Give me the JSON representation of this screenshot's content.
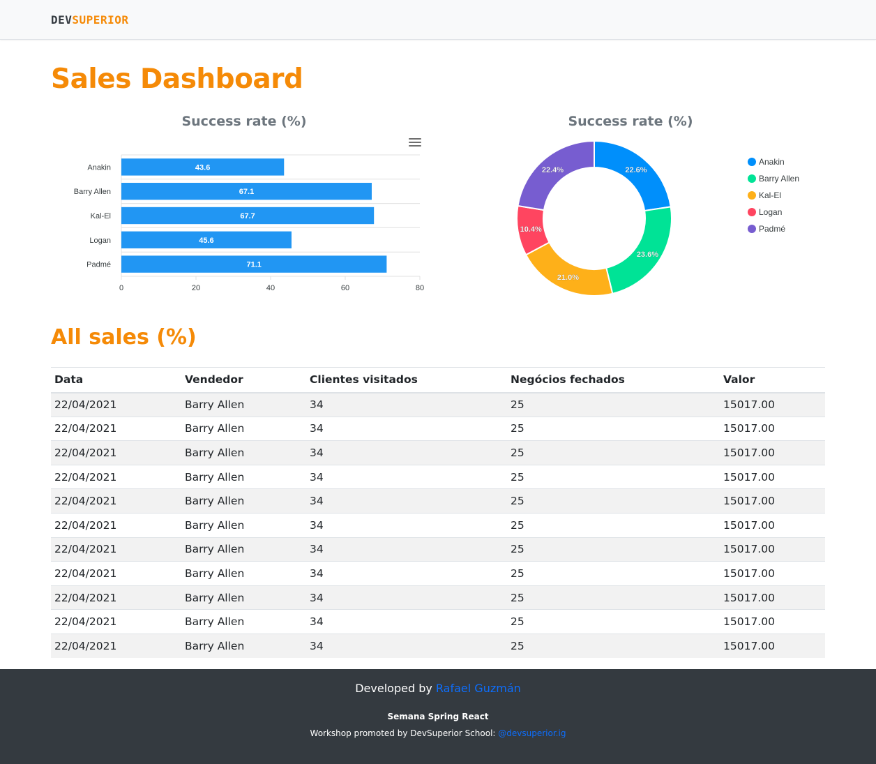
{
  "brand": {
    "part1": "DEV",
    "part2": "SUPERIOR"
  },
  "page": {
    "title": "Sales Dashboard",
    "section_title": "All sales (%)"
  },
  "colors": {
    "brand_orange": "#f58a07",
    "bar_blue": "#2196f3",
    "footer_bg": "#343a40",
    "link_blue": "#0d6efd"
  },
  "charts": {
    "bar_title": "Success rate (%)",
    "donut_title": "Success rate (%)",
    "menu_icon": "hamburger-menu-icon"
  },
  "chart_data": [
    {
      "type": "bar",
      "orientation": "horizontal",
      "title": "Success rate (%)",
      "categories": [
        "Anakin",
        "Barry Allen",
        "Kal-El",
        "Logan",
        "Padmé"
      ],
      "values": [
        43.6,
        67.1,
        67.7,
        45.6,
        71.1
      ],
      "xlim": [
        0,
        80
      ],
      "xticks": [
        0,
        20,
        40,
        60,
        80
      ],
      "grid": true,
      "color": "#2196f3"
    },
    {
      "type": "pie",
      "variant": "donut",
      "title": "Success rate (%)",
      "labels": [
        "Anakin",
        "Barry Allen",
        "Kal-El",
        "Logan",
        "Padmé"
      ],
      "values": [
        22.6,
        23.6,
        21.0,
        10.4,
        22.4
      ],
      "value_labels": [
        "22.6%",
        "23.6%",
        "21.0%",
        "10.4%",
        "22.4%"
      ],
      "colors": [
        "#008ffb",
        "#00e396",
        "#feb019",
        "#ff4560",
        "#775dd0"
      ],
      "legend": "right"
    }
  ],
  "table": {
    "headers": [
      "Data",
      "Vendedor",
      "Clientes visitados",
      "Negócios fechados",
      "Valor"
    ],
    "rows": [
      [
        "22/04/2021",
        "Barry Allen",
        "34",
        "25",
        "15017.00"
      ],
      [
        "22/04/2021",
        "Barry Allen",
        "34",
        "25",
        "15017.00"
      ],
      [
        "22/04/2021",
        "Barry Allen",
        "34",
        "25",
        "15017.00"
      ],
      [
        "22/04/2021",
        "Barry Allen",
        "34",
        "25",
        "15017.00"
      ],
      [
        "22/04/2021",
        "Barry Allen",
        "34",
        "25",
        "15017.00"
      ],
      [
        "22/04/2021",
        "Barry Allen",
        "34",
        "25",
        "15017.00"
      ],
      [
        "22/04/2021",
        "Barry Allen",
        "34",
        "25",
        "15017.00"
      ],
      [
        "22/04/2021",
        "Barry Allen",
        "34",
        "25",
        "15017.00"
      ],
      [
        "22/04/2021",
        "Barry Allen",
        "34",
        "25",
        "15017.00"
      ],
      [
        "22/04/2021",
        "Barry Allen",
        "34",
        "25",
        "15017.00"
      ],
      [
        "22/04/2021",
        "Barry Allen",
        "34",
        "25",
        "15017.00"
      ]
    ]
  },
  "footer": {
    "developed_by": "Developed by",
    "author": "Rafael Guzmán",
    "event": "Semana Spring React",
    "workshop": "Workshop promoted by DevSuperior School:",
    "instagram": "@devsuperior.ig"
  }
}
